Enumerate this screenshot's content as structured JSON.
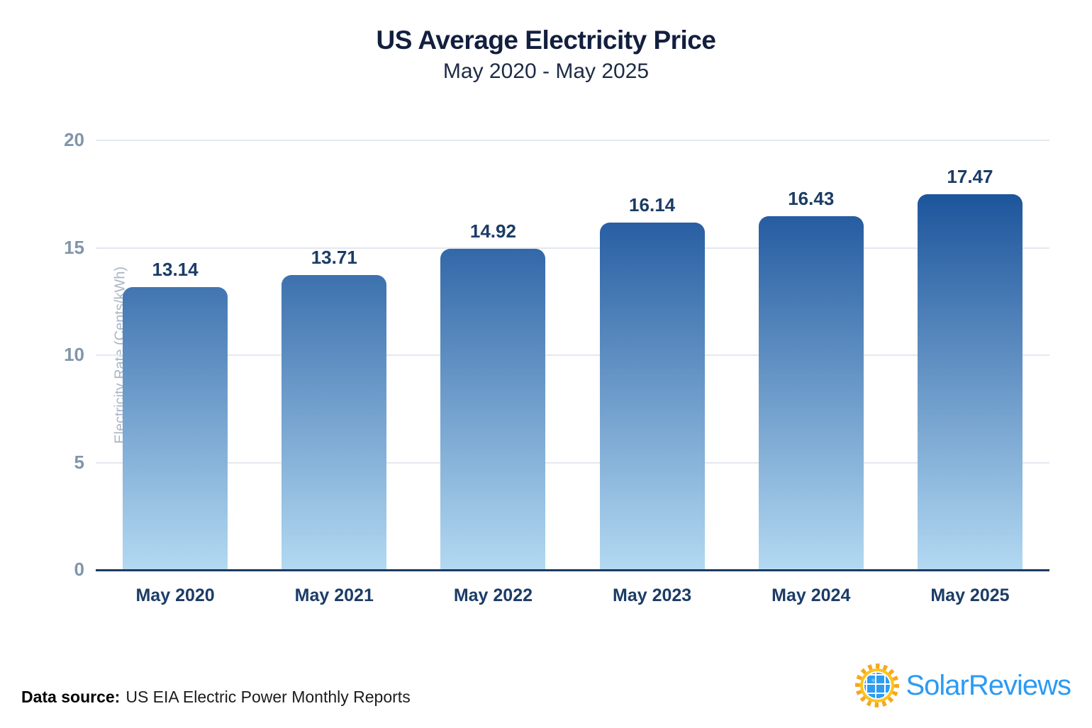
{
  "header": {
    "title": "US Average Electricity Price",
    "subtitle": "May 2020 - May 2025"
  },
  "chart_data": {
    "type": "bar",
    "categories": [
      "May 2020",
      "May 2021",
      "May 2022",
      "May 2023",
      "May 2024",
      "May 2025"
    ],
    "values": [
      13.14,
      13.71,
      14.92,
      16.14,
      16.43,
      17.47
    ],
    "title": "US Average Electricity Price",
    "subtitle": "May 2020 - May 2025",
    "xlabel": "",
    "ylabel": "Electricity Rate (Cents/kWh)",
    "ylim": [
      0,
      20
    ],
    "yticks": [
      0,
      5,
      10,
      15,
      20
    ],
    "grid": true,
    "legend": false,
    "bar_gradient_top": "#06418f",
    "bar_gradient_bottom": "#b3d9f2",
    "value_label_color": "#1b3c66",
    "axis_line_color": "#1b3a5f",
    "gridline_color": "#e3e8ef",
    "tick_label_color": "#8195ab"
  },
  "footer": {
    "source_label": "Data source:",
    "source_text": "US EIA Electric Power Monthly Reports",
    "logo_text": "SolarReviews",
    "logo_icon": "sun-solar-panel-icon",
    "logo_color": "#2b9bf4"
  }
}
